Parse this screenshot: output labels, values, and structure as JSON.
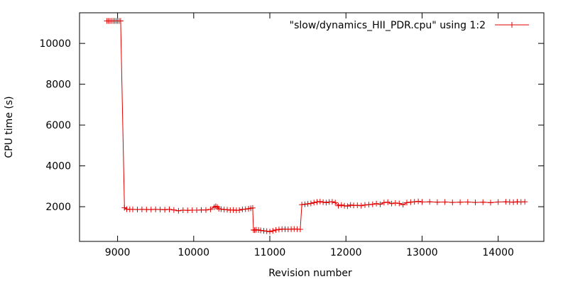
{
  "chart_data": {
    "type": "line",
    "title": "",
    "xlabel": "Revision number",
    "ylabel": "CPU time (s)",
    "xlim": [
      8500,
      14600
    ],
    "ylim": [
      300,
      11500
    ],
    "xticks": [
      9000,
      10000,
      11000,
      12000,
      13000,
      14000
    ],
    "xtick_labels": [
      "9000",
      "10000",
      "11000",
      "12000",
      "13000",
      "14000"
    ],
    "yticks": [
      2000,
      4000,
      6000,
      8000,
      10000
    ],
    "ytick_labels": [
      "2000",
      "4000",
      "6000",
      "8000",
      "10000"
    ],
    "grid": false,
    "legend_position": "top-right",
    "series": [
      {
        "name": "\"slow/dynamics_HII_PDR.cpu\" using 1:2",
        "color": "#e00000",
        "marker": "plus",
        "x": [
          8860,
          8880,
          8900,
          8920,
          8940,
          8960,
          8980,
          9000,
          9020,
          9040,
          9090,
          9120,
          9160,
          9200,
          9260,
          9320,
          9380,
          9440,
          9500,
          9560,
          9620,
          9680,
          9740,
          9800,
          9860,
          9920,
          9980,
          10040,
          10100,
          10160,
          10220,
          10270,
          10290,
          10310,
          10330,
          10360,
          10400,
          10440,
          10480,
          10520,
          10560,
          10600,
          10640,
          10680,
          10720,
          10750,
          10775,
          10785,
          10800,
          10820,
          10850,
          10880,
          10920,
          10960,
          11000,
          11040,
          11080,
          11120,
          11160,
          11200,
          11240,
          11280,
          11320,
          11360,
          11400,
          11420,
          11460,
          11500,
          11540,
          11580,
          11620,
          11660,
          11700,
          11740,
          11780,
          11820,
          11860,
          11900,
          11940,
          11980,
          12020,
          12060,
          12100,
          12150,
          12200,
          12250,
          12300,
          12350,
          12400,
          12450,
          12500,
          12550,
          12600,
          12650,
          12700,
          12750,
          12800,
          12850,
          12900,
          12950,
          13000,
          13100,
          13200,
          13300,
          13400,
          13500,
          13600,
          13700,
          13800,
          13900,
          14000,
          14100,
          14150,
          14200,
          14250,
          14300,
          14350
        ],
        "y": [
          11100,
          11100,
          11100,
          11100,
          11100,
          11100,
          11100,
          11100,
          11100,
          11100,
          1950,
          1880,
          1870,
          1870,
          1860,
          1870,
          1860,
          1860,
          1870,
          1860,
          1850,
          1870,
          1840,
          1800,
          1830,
          1820,
          1830,
          1830,
          1840,
          1840,
          1870,
          1980,
          2020,
          1980,
          1900,
          1880,
          1860,
          1850,
          1830,
          1840,
          1820,
          1830,
          1870,
          1880,
          1900,
          1920,
          1940,
          860,
          850,
          870,
          860,
          840,
          820,
          800,
          780,
          820,
          860,
          880,
          900,
          900,
          890,
          900,
          910,
          900,
          890,
          2100,
          2120,
          2140,
          2160,
          2200,
          2230,
          2250,
          2220,
          2200,
          2230,
          2240,
          2200,
          2050,
          2080,
          2050,
          2030,
          2080,
          2060,
          2070,
          2050,
          2080,
          2100,
          2120,
          2150,
          2120,
          2200,
          2220,
          2150,
          2180,
          2160,
          2100,
          2200,
          2220,
          2240,
          2260,
          2230,
          2240,
          2220,
          2230,
          2210,
          2220,
          2230,
          2210,
          2220,
          2200,
          2230,
          2240,
          2230,
          2220,
          2240,
          2230,
          2240
        ]
      }
    ]
  }
}
